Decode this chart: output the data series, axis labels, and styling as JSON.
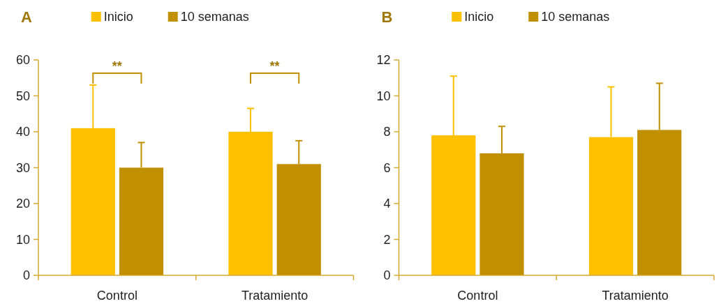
{
  "chart_data": [
    {
      "type": "bar",
      "title": "A",
      "categories": [
        "Control",
        "Tratamiento"
      ],
      "legend": "top",
      "ylim": [
        0,
        60
      ],
      "yticks": [
        0,
        10,
        20,
        30,
        40,
        50,
        60
      ],
      "grid": false,
      "annotations": [
        "**",
        "**"
      ],
      "series": [
        {
          "name": "Inicio",
          "color": "#ffc000",
          "values": [
            41,
            40
          ],
          "errors": [
            [
              41,
              53
            ],
            [
              40,
              46.5
            ]
          ]
        },
        {
          "name": "10 semanas",
          "color": "#c09000",
          "values": [
            30,
            31
          ],
          "errors": [
            [
              30,
              37
            ],
            [
              31,
              37.5
            ]
          ]
        }
      ]
    },
    {
      "type": "bar",
      "title": "B",
      "categories": [
        "Control",
        "Tratamiento"
      ],
      "legend": "top",
      "ylim": [
        0,
        12
      ],
      "yticks": [
        0,
        2,
        4,
        6,
        8,
        10,
        12
      ],
      "grid": false,
      "series": [
        {
          "name": "Inicio",
          "color": "#ffc000",
          "values": [
            7.8,
            7.7
          ],
          "errors": [
            [
              7.8,
              11.1
            ],
            [
              7.7,
              10.5
            ]
          ]
        },
        {
          "name": "10 semanas",
          "color": "#c09000",
          "values": [
            6.8,
            8.1
          ],
          "errors": [
            [
              6.8,
              8.3
            ],
            [
              8.1,
              10.7
            ]
          ]
        }
      ]
    }
  ]
}
